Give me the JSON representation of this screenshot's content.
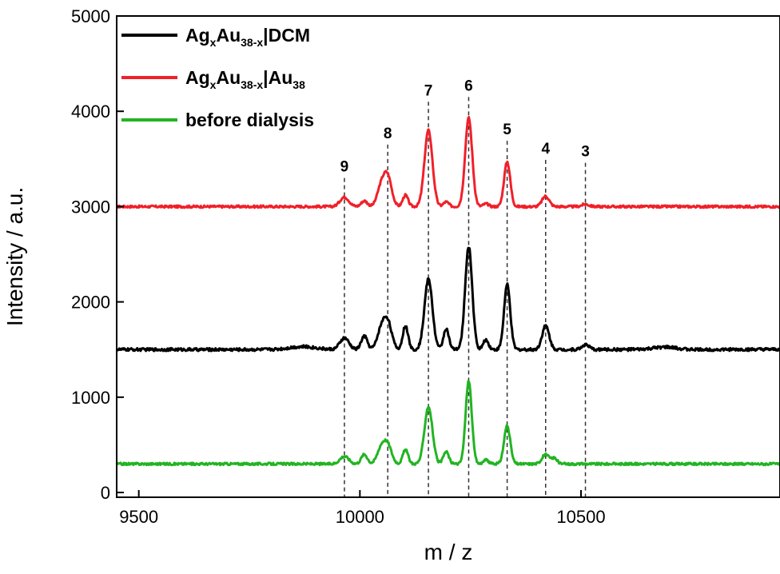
{
  "chart_data": {
    "type": "line",
    "xlabel": "m / z",
    "ylabel": "Intensity / a.u.",
    "xlim": [
      9450,
      10950
    ],
    "ylim": [
      -50,
      5000
    ],
    "xticks": [
      9500,
      10000,
      10500
    ],
    "yticks": [
      0,
      1000,
      2000,
      3000,
      4000,
      5000
    ],
    "grid": false,
    "legend_position": "top-left",
    "legend": [
      {
        "series": "Ag_xAu_(38-x)|DCM",
        "color": "#000000",
        "parts": [
          {
            "t": "Ag",
            "s": "n"
          },
          {
            "t": "x",
            "s": "sub"
          },
          {
            "t": "Au",
            "s": "n"
          },
          {
            "t": "38-x",
            "s": "sub"
          },
          {
            "t": "|DCM",
            "s": "n"
          }
        ]
      },
      {
        "series": "Ag_xAu_(38-x)|Au_38",
        "color": "#f0202a",
        "parts": [
          {
            "t": "Ag",
            "s": "n"
          },
          {
            "t": "x",
            "s": "sub"
          },
          {
            "t": "Au",
            "s": "n"
          },
          {
            "t": "38-x",
            "s": "sub"
          },
          {
            "t": "|Au",
            "s": "n"
          },
          {
            "t": "38",
            "s": "sub"
          }
        ]
      },
      {
        "series": "before dialysis",
        "color": "#22b422",
        "parts": [
          {
            "t": "before dialysis",
            "s": "n"
          }
        ]
      }
    ],
    "peak_markers": [
      {
        "label": "9",
        "x": 9965,
        "top_y": 3300
      },
      {
        "label": "8",
        "x": 10063,
        "top_y": 3650
      },
      {
        "label": "7",
        "x": 10155,
        "top_y": 4100
      },
      {
        "label": "6",
        "x": 10246,
        "top_y": 4150
      },
      {
        "label": "5",
        "x": 10333,
        "top_y": 3690
      },
      {
        "label": "4",
        "x": 10420,
        "top_y": 3490
      },
      {
        "label": "3",
        "x": 10510,
        "top_y": 3460
      }
    ],
    "series": [
      {
        "name": "Ag_xAu_(38-x)|Au_38",
        "color": "#f0202a",
        "baseline": 3000,
        "noise": 12,
        "peaks": [
          {
            "x": 9965,
            "h": 100,
            "w": 10
          },
          {
            "x": 10010,
            "h": 60,
            "w": 7
          },
          {
            "x": 10048,
            "h": 200,
            "w": 9
          },
          {
            "x": 10063,
            "h": 300,
            "w": 9
          },
          {
            "x": 10103,
            "h": 120,
            "w": 6
          },
          {
            "x": 10155,
            "h": 800,
            "w": 9
          },
          {
            "x": 10195,
            "h": 50,
            "w": 6
          },
          {
            "x": 10246,
            "h": 930,
            "w": 8
          },
          {
            "x": 10285,
            "h": 30,
            "w": 6
          },
          {
            "x": 10333,
            "h": 470,
            "w": 7
          },
          {
            "x": 10420,
            "h": 110,
            "w": 8
          },
          {
            "x": 10510,
            "h": 25,
            "w": 8
          }
        ]
      },
      {
        "name": "Ag_xAu_(38-x)|DCM",
        "color": "#000000",
        "baseline": 1500,
        "noise": 15,
        "peaks": [
          {
            "x": 9870,
            "h": 30,
            "w": 30
          },
          {
            "x": 9965,
            "h": 120,
            "w": 10
          },
          {
            "x": 10010,
            "h": 140,
            "w": 7
          },
          {
            "x": 10048,
            "h": 200,
            "w": 9
          },
          {
            "x": 10063,
            "h": 280,
            "w": 9
          },
          {
            "x": 10103,
            "h": 250,
            "w": 6
          },
          {
            "x": 10155,
            "h": 740,
            "w": 9
          },
          {
            "x": 10195,
            "h": 220,
            "w": 6
          },
          {
            "x": 10246,
            "h": 1080,
            "w": 8
          },
          {
            "x": 10285,
            "h": 100,
            "w": 6
          },
          {
            "x": 10333,
            "h": 680,
            "w": 7
          },
          {
            "x": 10420,
            "h": 250,
            "w": 8
          },
          {
            "x": 10510,
            "h": 50,
            "w": 8
          },
          {
            "x": 10690,
            "h": 25,
            "w": 25
          }
        ]
      },
      {
        "name": "before dialysis",
        "color": "#22b422",
        "baseline": 300,
        "noise": 12,
        "peaks": [
          {
            "x": 9965,
            "h": 80,
            "w": 10
          },
          {
            "x": 10010,
            "h": 100,
            "w": 7
          },
          {
            "x": 10048,
            "h": 160,
            "w": 9
          },
          {
            "x": 10063,
            "h": 190,
            "w": 9
          },
          {
            "x": 10103,
            "h": 150,
            "w": 6
          },
          {
            "x": 10155,
            "h": 600,
            "w": 9
          },
          {
            "x": 10195,
            "h": 130,
            "w": 6
          },
          {
            "x": 10246,
            "h": 870,
            "w": 7
          },
          {
            "x": 10285,
            "h": 40,
            "w": 6
          },
          {
            "x": 10333,
            "h": 400,
            "w": 7
          },
          {
            "x": 10420,
            "h": 100,
            "w": 8
          },
          {
            "x": 10440,
            "h": 60,
            "w": 6
          }
        ]
      }
    ]
  }
}
